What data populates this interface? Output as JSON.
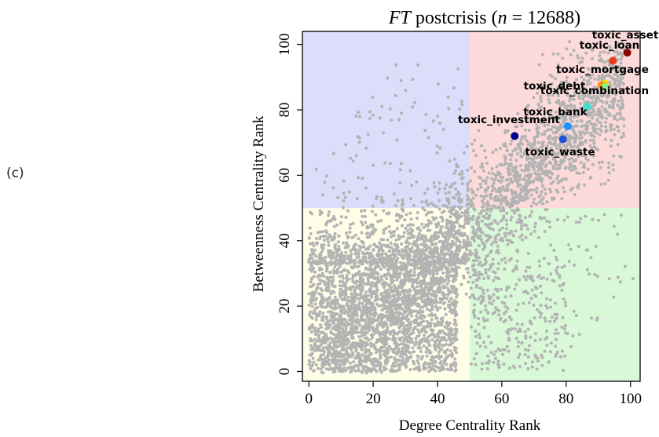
{
  "panel_label": "(c)",
  "chart_data": {
    "type": "scatter",
    "title_italic": "FT",
    "title_rest": " postcrisis (",
    "title_n_italic": "n",
    "title_n_value": " = 12688)",
    "xlabel": "Degree Centrality Rank",
    "ylabel": "Betweenness Centrality Rank",
    "xlim": [
      -2,
      103
    ],
    "ylim": [
      -3,
      104
    ],
    "xticks": [
      0,
      20,
      40,
      60,
      80,
      100
    ],
    "yticks": [
      0,
      20,
      40,
      60,
      80,
      100
    ],
    "xtick_labels": [
      "0",
      "20",
      "40",
      "60",
      "80",
      "100"
    ],
    "ytick_labels": [
      "0",
      "20",
      "40",
      "60",
      "80",
      "100"
    ],
    "quadrants": [
      {
        "x": [
          -2,
          50
        ],
        "y": [
          50,
          104
        ],
        "color": "#dcdcfb"
      },
      {
        "x": [
          50,
          103
        ],
        "y": [
          50,
          104
        ],
        "color": "#fcdada"
      },
      {
        "x": [
          -2,
          50
        ],
        "y": [
          -3,
          50
        ],
        "color": "#fefde7"
      },
      {
        "x": [
          50,
          103
        ],
        "y": [
          -3,
          50
        ],
        "color": "#d8f8d8"
      }
    ],
    "background_points_color": "#b3b3b3",
    "background_points_n": 12688,
    "highlighted": [
      {
        "name": "toxic_asset",
        "x": 99,
        "y": 97.5,
        "color": "#8b0000"
      },
      {
        "name": "toxic_loan",
        "x": 94.5,
        "y": 95,
        "color": "#ee3b1c"
      },
      {
        "name": "toxic_mortgage",
        "x": 92,
        "y": 88,
        "color": "#ffd700"
      },
      {
        "name": "toxic_debt",
        "x": 91,
        "y": 87.5,
        "color": "#ff8c00"
      },
      {
        "name": "toxic_combination",
        "x": 92,
        "y": 87,
        "color": "#90ee90"
      },
      {
        "name": "toxic_bank",
        "x": 86.5,
        "y": 81,
        "color": "#40e0d0"
      },
      {
        "name": "toxic_investment",
        "x": 64,
        "y": 72,
        "color": "#00008b"
      },
      {
        "name": "toxic_waste",
        "x": 79,
        "y": 71,
        "color": "#1e4fd6"
      },
      {
        "name": "",
        "x": 80.5,
        "y": 75,
        "color": "#1e90ff"
      }
    ]
  }
}
